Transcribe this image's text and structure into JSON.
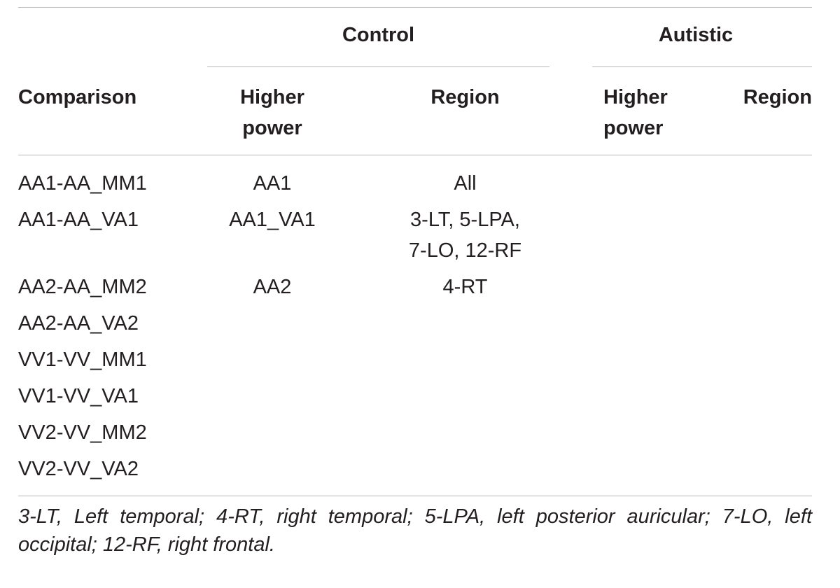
{
  "table": {
    "group_headers": {
      "control": "Control",
      "autistic": "Autistic"
    },
    "column_headers": {
      "comparison": "Comparison",
      "control_higher_power": [
        "Higher",
        "power"
      ],
      "control_region": "Region",
      "autistic_higher_power": [
        "Higher",
        "power"
      ],
      "autistic_region": "Region"
    },
    "rows": [
      {
        "comparison": "AA1-AA_MM1",
        "control_higher_power": "AA1",
        "control_region": [
          "All"
        ],
        "autistic_higher_power": "",
        "autistic_region": ""
      },
      {
        "comparison": "AA1-AA_VA1",
        "control_higher_power": "AA1_VA1",
        "control_region": [
          "3-LT, 5-LPA,",
          "7-LO, 12-RF"
        ],
        "autistic_higher_power": "",
        "autistic_region": ""
      },
      {
        "comparison": "AA2-AA_MM2",
        "control_higher_power": "AA2",
        "control_region": [
          "4-RT"
        ],
        "autistic_higher_power": "",
        "autistic_region": ""
      },
      {
        "comparison": "AA2-AA_VA2",
        "control_higher_power": "",
        "control_region": [],
        "autistic_higher_power": "",
        "autistic_region": ""
      },
      {
        "comparison": "VV1-VV_MM1",
        "control_higher_power": "",
        "control_region": [],
        "autistic_higher_power": "",
        "autistic_region": ""
      },
      {
        "comparison": "VV1-VV_VA1",
        "control_higher_power": "",
        "control_region": [],
        "autistic_higher_power": "",
        "autistic_region": ""
      },
      {
        "comparison": "VV2-VV_MM2",
        "control_higher_power": "",
        "control_region": [],
        "autistic_higher_power": "",
        "autistic_region": ""
      },
      {
        "comparison": "VV2-VV_VA2",
        "control_higher_power": "",
        "control_region": [],
        "autistic_higher_power": "",
        "autistic_region": ""
      }
    ],
    "footnote": "3-LT, Left temporal; 4-RT, right temporal; 5-LPA, left posterior auricular; 7-LO, left occipital; 12-RF, right frontal."
  }
}
